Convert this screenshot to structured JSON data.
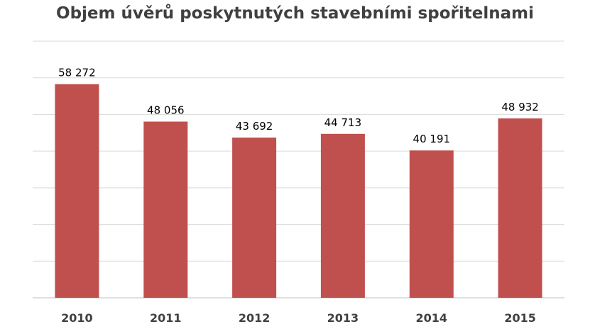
{
  "chart_data": {
    "type": "bar",
    "title": "Objem úvěrů poskytnutých stavebními spořitelnami",
    "categories": [
      "2010",
      "2011",
      "2012",
      "2013",
      "2014",
      "2015"
    ],
    "values": [
      58272,
      48056,
      43692,
      44713,
      40191,
      48932
    ],
    "data_labels": [
      "58 272",
      "48 056",
      "43 692",
      "44 713",
      "40 191",
      "48 932"
    ],
    "xlabel": "",
    "ylabel": "",
    "ylim": [
      0,
      70000
    ],
    "grid": true,
    "y_tick_labels_visible": false,
    "bar_color": "#c0504d"
  }
}
